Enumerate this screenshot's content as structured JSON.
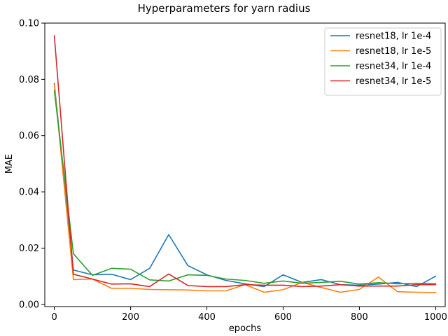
{
  "chart_data": {
    "type": "line",
    "title": "Hyperparameters for yarn radius",
    "xlabel": "epochs",
    "ylabel": "MAE",
    "xlim": [
      -25,
      1025
    ],
    "ylim": [
      -0.0008,
      0.1
    ],
    "xticks": [
      0,
      200,
      400,
      600,
      800,
      1000
    ],
    "xtick_labels": [
      "0",
      "200",
      "400",
      "600",
      "800",
      "1000"
    ],
    "yticks": [
      0.0,
      0.02,
      0.04,
      0.06,
      0.08,
      0.1
    ],
    "ytick_labels": [
      "0.00",
      "0.02",
      "0.04",
      "0.06",
      "0.08",
      "0.10"
    ],
    "grid": false,
    "legend_position": "top-right",
    "x": [
      0,
      50,
      100,
      150,
      200,
      250,
      300,
      350,
      400,
      450,
      500,
      550,
      600,
      650,
      700,
      750,
      800,
      850,
      900,
      950,
      1000
    ],
    "series": [
      {
        "name": "resnet18, lr 1e-4",
        "color": "#1f77b4",
        "values": [
          0.0785,
          0.0122,
          0.0105,
          0.0107,
          0.0088,
          0.0128,
          0.0248,
          0.0138,
          0.0105,
          0.0085,
          0.0073,
          0.0063,
          0.0105,
          0.0078,
          0.0088,
          0.007,
          0.0068,
          0.0072,
          0.0078,
          0.0063,
          0.01
        ]
      },
      {
        "name": "resnet18, lr 1e-5",
        "color": "#ff7f0e",
        "values": [
          0.078,
          0.0088,
          0.009,
          0.0057,
          0.0057,
          0.0053,
          0.0052,
          0.0051,
          0.0048,
          0.0048,
          0.007,
          0.0043,
          0.0052,
          0.0078,
          0.006,
          0.0043,
          0.0053,
          0.0097,
          0.0045,
          0.0043,
          0.0042
        ]
      },
      {
        "name": "resnet34, lr 1e-4",
        "color": "#2ca02c",
        "values": [
          0.076,
          0.018,
          0.0103,
          0.0128,
          0.0125,
          0.0087,
          0.0083,
          0.0105,
          0.0103,
          0.009,
          0.0085,
          0.0075,
          0.0083,
          0.0075,
          0.0078,
          0.0082,
          0.0072,
          0.0077,
          0.0073,
          0.0075,
          0.0073
        ]
      },
      {
        "name": "resnet34, lr 1e-5",
        "color": "#d62728",
        "values": [
          0.0955,
          0.0107,
          0.009,
          0.0072,
          0.0073,
          0.0063,
          0.0108,
          0.0067,
          0.0063,
          0.0063,
          0.007,
          0.0068,
          0.0068,
          0.0063,
          0.0065,
          0.007,
          0.0065,
          0.0065,
          0.0065,
          0.007,
          0.007
        ]
      }
    ]
  }
}
